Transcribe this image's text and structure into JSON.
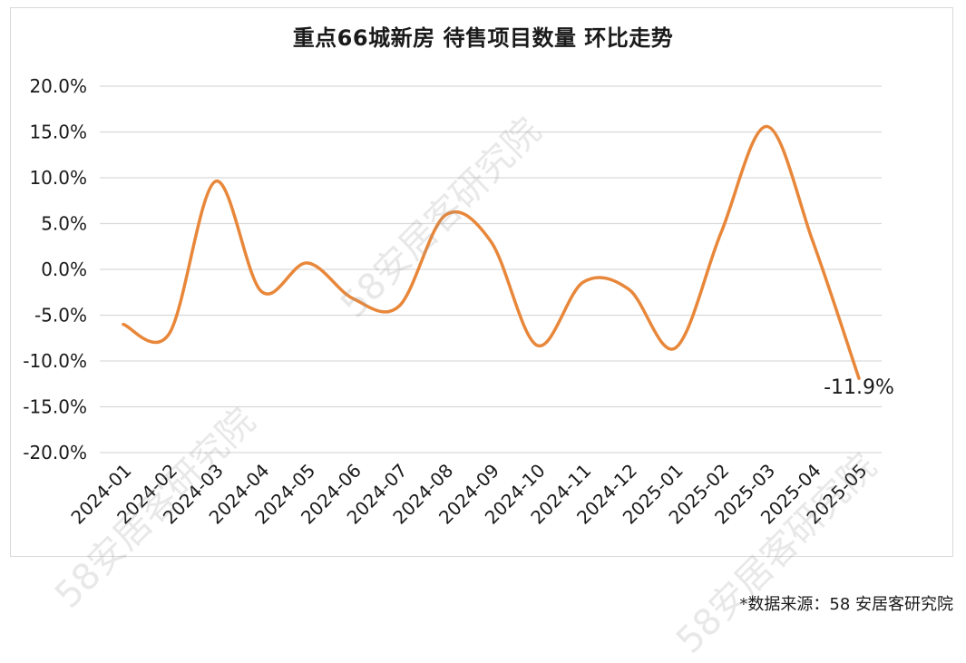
{
  "chart_data": {
    "type": "line",
    "title": "重点66城新房 待售项目数量 环比走势",
    "categories": [
      "2024-01",
      "2024-02",
      "2024-03",
      "2024-04",
      "2024-05",
      "2024-06",
      "2024-07",
      "2024-08",
      "2024-09",
      "2024-10",
      "2024-11",
      "2024-12",
      "2025-01",
      "2025-02",
      "2025-03",
      "2025-04",
      "2025-05"
    ],
    "series": [
      {
        "values": [
          -6.0,
          -7.0,
          9.6,
          -2.4,
          0.7,
          -3.2,
          -4.0,
          5.9,
          3.0,
          -8.3,
          -1.4,
          -2.2,
          -8.6,
          4.0,
          15.6,
          3.0,
          -11.9
        ]
      }
    ],
    "y_tick_labels": [
      "20.0%",
      "15.0%",
      "10.0%",
      "5.0%",
      "0.0%",
      "-5.0%",
      "-10.0%",
      "-15.0%",
      "-20.0%"
    ],
    "ylim": [
      -20,
      20
    ],
    "y_step": 5,
    "grid": true,
    "line_color": "#E8873A",
    "smooth": true,
    "data_label": {
      "index": 16,
      "text": "-11.9%"
    }
  },
  "source": "*数据来源：58 安居客研究院",
  "watermark": "58安居客研究院"
}
